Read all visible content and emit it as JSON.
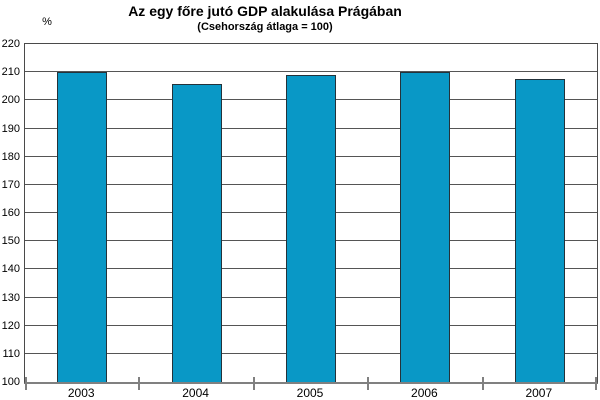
{
  "chart_data": {
    "type": "bar",
    "title": "Az egy főre jutó GDP alakulása Prágában",
    "subtitle": "(Csehország átlaga = 100)",
    "xlabel": "",
    "ylabel": "%",
    "categories": [
      "2003",
      "2004",
      "2005",
      "2006",
      "2007"
    ],
    "values": [
      209.9,
      205.9,
      208.9,
      209.9,
      207.6
    ],
    "ylim": [
      100,
      220
    ],
    "ytick_step": 10,
    "yticks": [
      100,
      110,
      120,
      130,
      140,
      150,
      160,
      170,
      180,
      190,
      200,
      210,
      220
    ],
    "grid": true,
    "legend_position": "none",
    "colors": {
      "bar_fill": "#0998C6",
      "bar_border": "#24323A",
      "gridline": "#555555",
      "axis_line": "#808080",
      "plot_border": "#4A4A4A",
      "text": "#000000",
      "background": "#FFFFFF"
    }
  }
}
